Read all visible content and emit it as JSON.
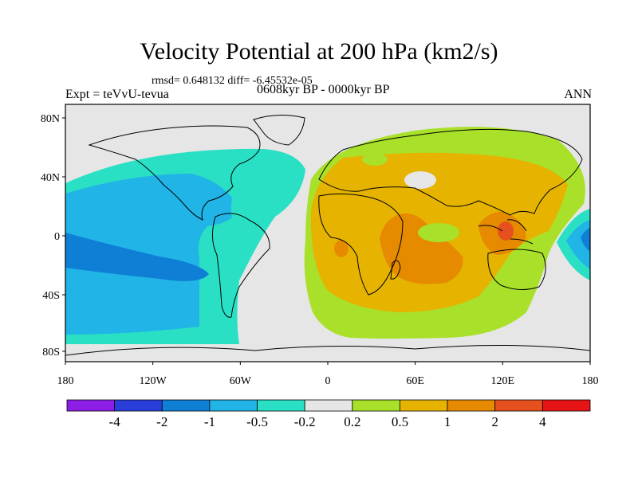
{
  "title": "Velocity Potential at 200 hPa (km2/s)",
  "stats": "rmsd= 0.648132 diff= -6.45532e-05",
  "experiment": "Expt = teVvU-tevua",
  "period": "0608kyr BP - 0000kyr BP",
  "season": "ANN",
  "lat_ticks": [
    "80N",
    "40N",
    "0",
    "40S",
    "80S"
  ],
  "lon_ticks": [
    "180",
    "120W",
    "60W",
    "0",
    "60E",
    "120E",
    "180"
  ],
  "colorbar": {
    "labels": [
      "-4",
      "-2",
      "-1",
      "-0.5",
      "-0.2",
      "0.2",
      "0.5",
      "1",
      "2",
      "4"
    ],
    "colors": [
      "#8c1ee6",
      "#2a3fd9",
      "#0f7fd6",
      "#21b4e6",
      "#29e0c4",
      "#e6e6e6",
      "#a8e02a",
      "#e6b400",
      "#e68a00",
      "#e6501e",
      "#e61414"
    ]
  },
  "regions": {
    "neutral": "#e6e6e6",
    "lev_m02": "#29e0c4",
    "lev_m05": "#21b4e6",
    "lev_m1": "#0f7fd6",
    "lev_p02": "#a8e02a",
    "lev_p05": "#e6b400",
    "lev_p1": "#e68a00",
    "lev_p2": "#e6501e"
  }
}
